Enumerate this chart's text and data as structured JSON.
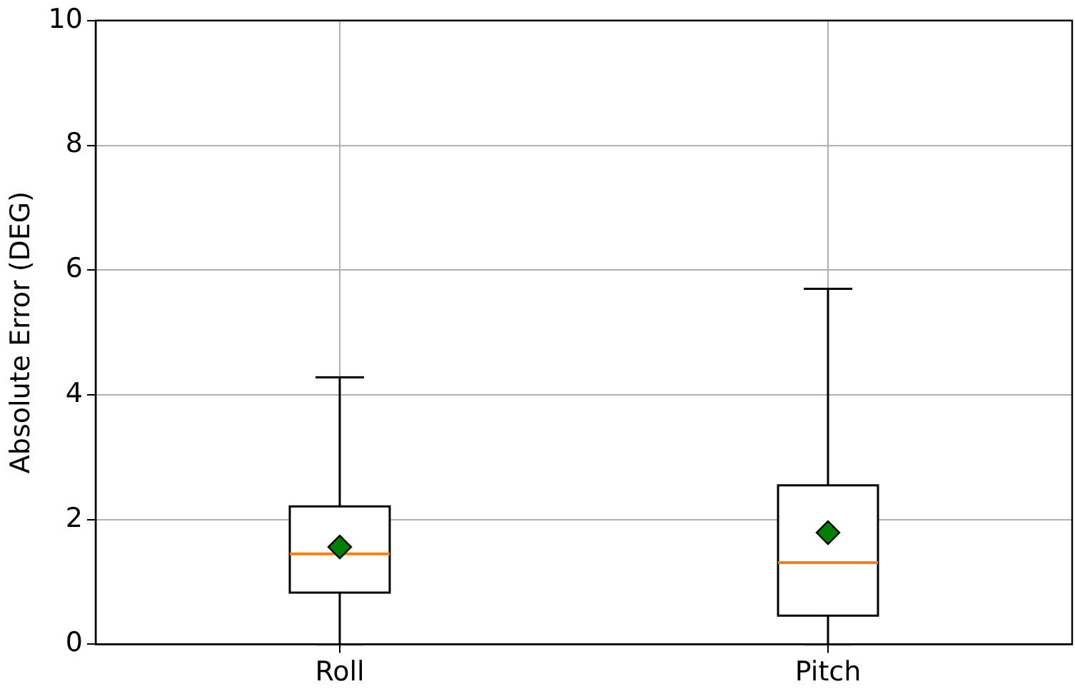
{
  "chart_data": {
    "type": "box",
    "ylabel": "Absolute Error (DEG)",
    "categories": [
      "Roll",
      "Pitch"
    ],
    "boxes": [
      {
        "low": 0,
        "q1": 0.83,
        "median": 1.45,
        "q3": 2.21,
        "high": 4.28,
        "mean": 1.56
      },
      {
        "low": 0,
        "q1": 0.46,
        "median": 1.31,
        "q3": 2.55,
        "high": 5.7,
        "mean": 1.79
      }
    ],
    "ylim": [
      0,
      10
    ],
    "yticks": [
      0,
      2,
      4,
      6,
      8,
      10
    ],
    "grid": true
  }
}
